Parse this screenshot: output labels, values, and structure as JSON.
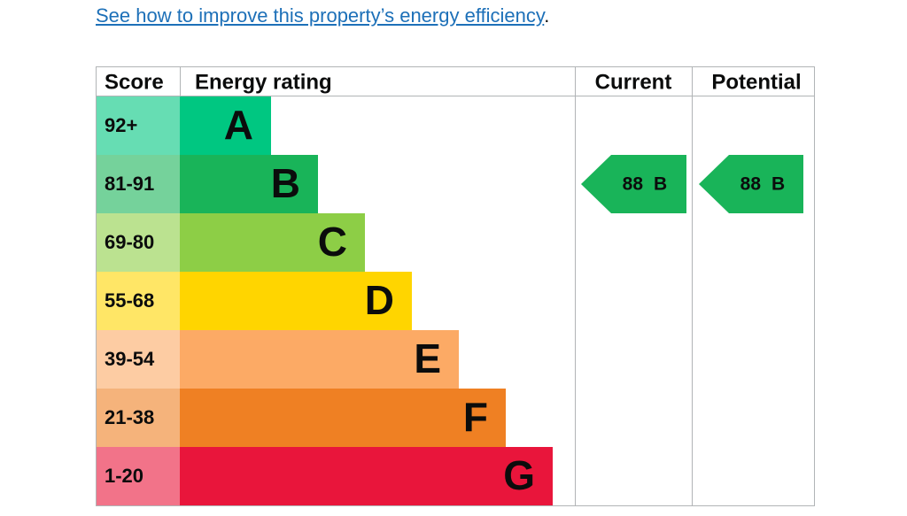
{
  "link": {
    "text": "See how to improve this property’s energy efficiency",
    "suffix": "."
  },
  "table": {
    "headers": [
      "Score",
      "Energy rating",
      "Current",
      "Potential"
    ],
    "rows": [
      {
        "score": "92+",
        "rating": "A",
        "color": "#00c781"
      },
      {
        "score": "81-91",
        "rating": "B",
        "color": "#19b459"
      },
      {
        "score": "69-80",
        "rating": "C",
        "color": "#8dce46"
      },
      {
        "score": "55-68",
        "rating": "D",
        "color": "#ffd500"
      },
      {
        "score": "39-54",
        "rating": "E",
        "color": "#fcaa65"
      },
      {
        "score": "21-38",
        "rating": "F",
        "color": "#ef8023"
      },
      {
        "score": "1-20",
        "rating": "G",
        "color": "#e9153b"
      }
    ],
    "current": {
      "score": "88",
      "rating": "B"
    },
    "potential": {
      "score": "88",
      "rating": "B"
    }
  }
}
